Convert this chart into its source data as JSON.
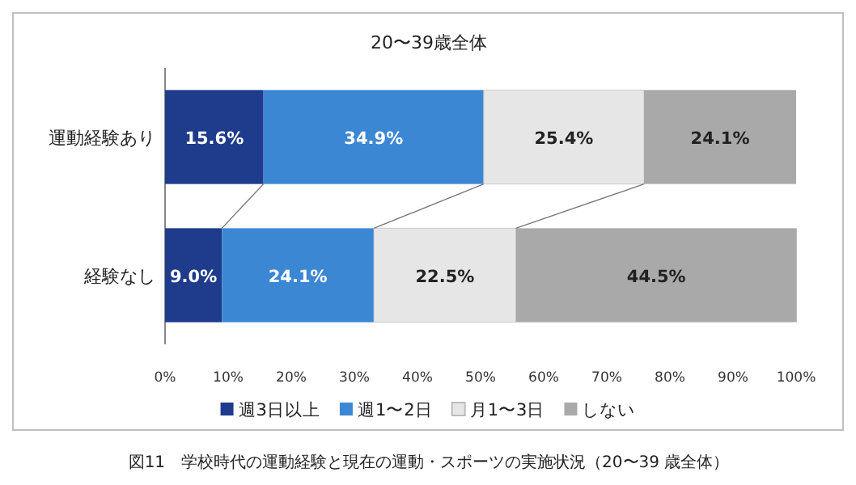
{
  "chart_data": {
    "type": "bar",
    "orientation": "horizontal",
    "stacked": true,
    "title": "20〜39歳全体",
    "categories": [
      "運動経験あり",
      "経験なし"
    ],
    "series": [
      {
        "name": "週3日以上",
        "color": "#1f3b8c",
        "values": [
          15.6,
          9.0
        ],
        "value_labels": [
          "15.6%",
          "9.0%"
        ]
      },
      {
        "name": "週1〜2日",
        "color": "#3b87d4",
        "values": [
          34.9,
          24.1
        ],
        "value_labels": [
          "34.9%",
          "24.1%"
        ]
      },
      {
        "name": "月1〜3日",
        "color": "#e6e6e6",
        "values": [
          25.4,
          22.5
        ],
        "value_labels": [
          "25.4%",
          "22.5%"
        ]
      },
      {
        "name": "しない",
        "color": "#a9a9a9",
        "values": [
          24.1,
          44.5
        ],
        "value_labels": [
          "24.1%",
          "44.5%"
        ]
      }
    ],
    "xlim": [
      0,
      100
    ],
    "xticks": [
      {
        "value": 0,
        "label": "0%"
      },
      {
        "value": 10,
        "label": "10%"
      },
      {
        "value": 20,
        "label": "20%"
      },
      {
        "value": 30,
        "label": "30%"
      },
      {
        "value": 40,
        "label": "40%"
      },
      {
        "value": 50,
        "label": "50%"
      },
      {
        "value": 60,
        "label": "60%"
      },
      {
        "value": 70,
        "label": "70%"
      },
      {
        "value": 80,
        "label": "80%"
      },
      {
        "value": 90,
        "label": "90%"
      },
      {
        "value": 100,
        "label": "100%"
      }
    ],
    "legend": "bottom",
    "grid": false,
    "annotations": [
      "図11　学校時代の運動経験と現在の運動・スポーツの実施状況（20〜39 歳全体）"
    ]
  }
}
